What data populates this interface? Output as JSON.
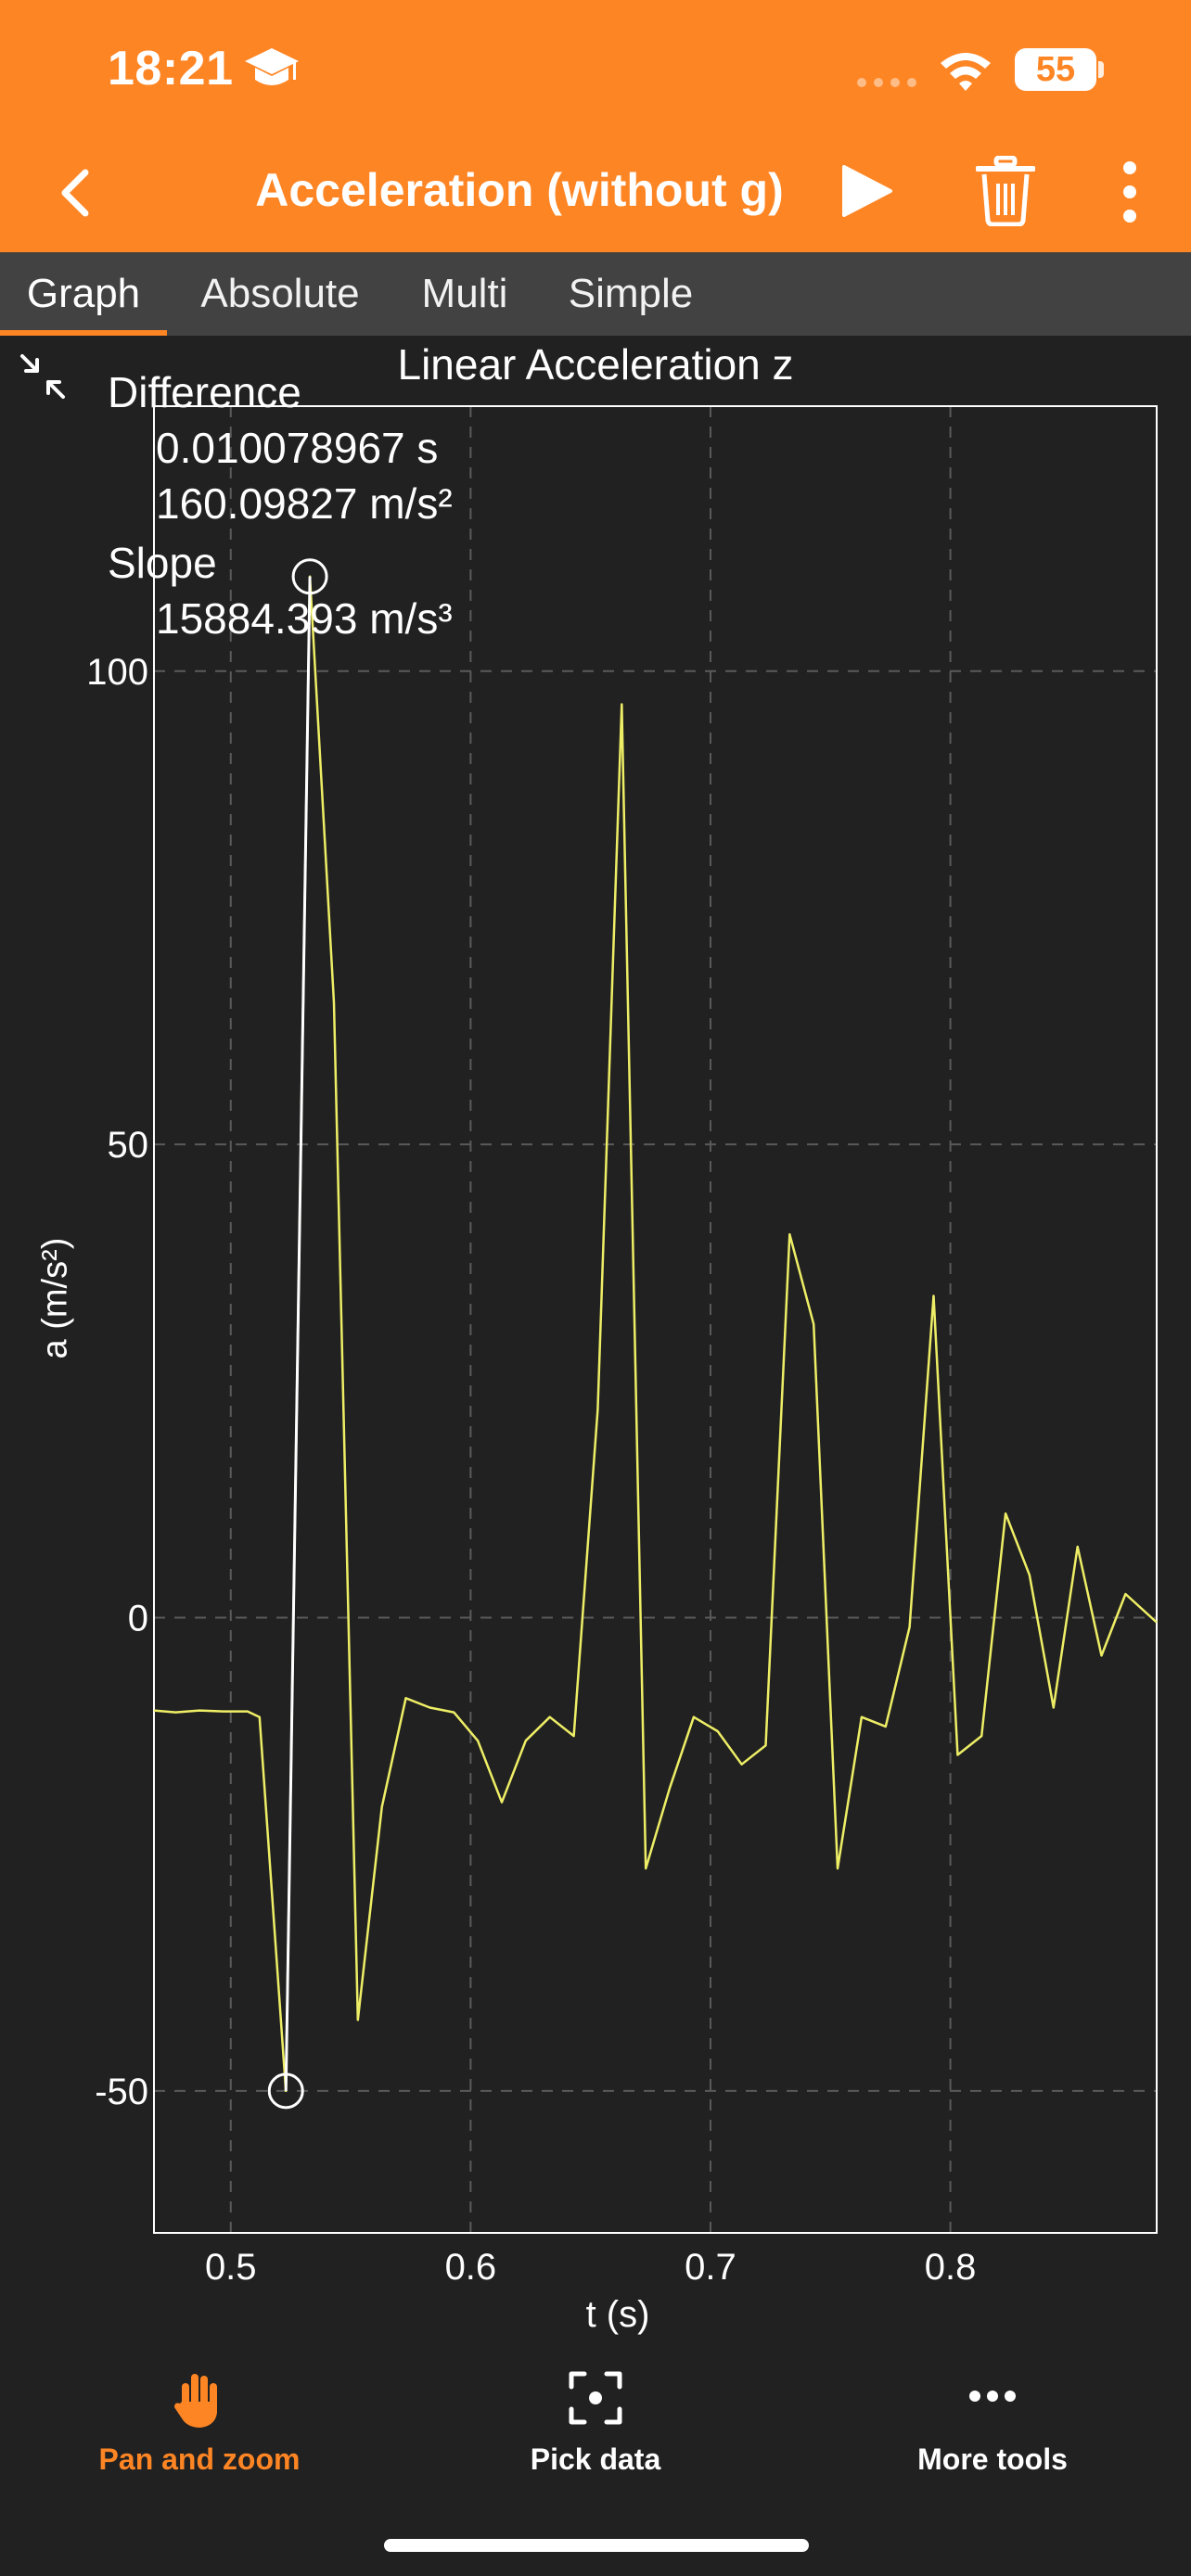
{
  "status_bar": {
    "time": "18:21",
    "battery": "55"
  },
  "header": {
    "title": "Acceleration (without g)"
  },
  "tabs": [
    {
      "label": "Graph"
    },
    {
      "label": "Absolute"
    },
    {
      "label": "Multi"
    },
    {
      "label": "Simple"
    }
  ],
  "readout": {
    "difference_label": "Difference",
    "difference_time": "0.010078967 s",
    "difference_value": "160.09827 m/s²",
    "slope_label": "Slope",
    "slope_value": "15884.393 m/s³"
  },
  "bottom_toolbar": {
    "pan_label": "Pan and zoom",
    "pick_label": "Pick data",
    "more_label": "More tools"
  },
  "colors": {
    "accent": "#FE8524",
    "header_bg": "#FE8524",
    "tabbar_bg": "#424242",
    "plot_bg": "#212121",
    "series": "#EEEE66",
    "selection": "#FFFFFF"
  },
  "chart_data": {
    "type": "line",
    "title": "Linear Acceleration z",
    "xlabel": "t (s)",
    "ylabel": "a (m/s²)",
    "xlim": [
      0.468,
      0.886
    ],
    "ylim": [
      -65,
      128
    ],
    "xticks": [
      0.5,
      0.6,
      0.7,
      0.8
    ],
    "yticks": [
      -50,
      0,
      50,
      100
    ],
    "xtick_labels": [
      "0.5",
      "0.6",
      "0.7",
      "0.8"
    ],
    "ytick_labels": [
      "-50",
      "0",
      "50",
      "100"
    ],
    "grid": true,
    "series": [
      {
        "x": [
          0.468,
          0.477,
          0.487,
          0.497,
          0.507,
          0.512,
          0.523,
          0.533,
          0.543,
          0.553,
          0.563,
          0.573,
          0.583,
          0.593,
          0.603,
          0.613,
          0.623,
          0.633,
          0.643,
          0.653,
          0.663,
          0.673,
          0.683,
          0.693,
          0.703,
          0.713,
          0.723,
          0.733,
          0.743,
          0.753,
          0.763,
          0.773,
          0.783,
          0.793,
          0.803,
          0.813,
          0.823,
          0.833,
          0.843,
          0.853,
          0.863,
          0.873,
          0.886
        ],
        "y": [
          -9.8,
          -10,
          -9.8,
          -9.9,
          -9.9,
          -10.5,
          -50,
          110,
          65,
          -42.5,
          -20,
          -8.5,
          -9.5,
          -10,
          -13,
          -19.5,
          -13,
          -10.5,
          -12.5,
          22,
          96.5,
          -26.5,
          -18,
          -10.5,
          -12,
          -15.5,
          -13.5,
          40.5,
          31,
          -26.5,
          -10.5,
          -11.5,
          -1,
          34,
          -14.5,
          -12.5,
          11,
          4.5,
          -9.5,
          7.5,
          -4,
          2.5,
          -0.5
        ]
      }
    ],
    "selection": {
      "x1": 0.523,
      "y1": -50,
      "x2": 0.533,
      "y2": 110
    }
  }
}
